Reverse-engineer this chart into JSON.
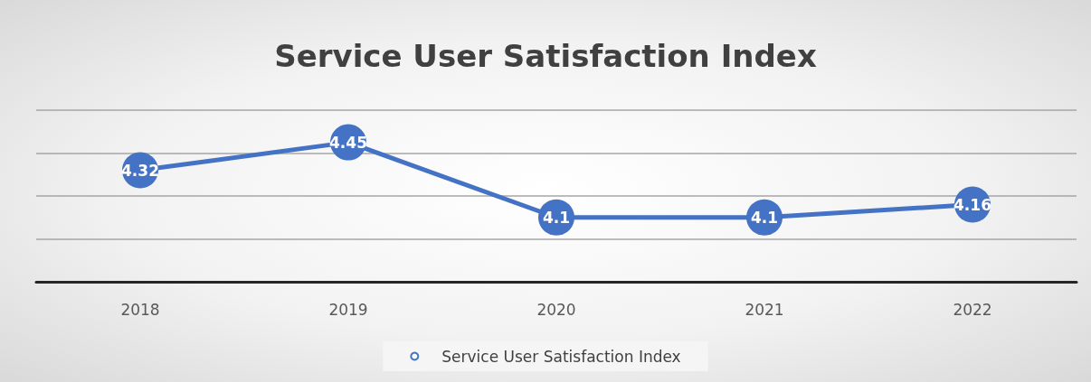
{
  "chart_data": {
    "type": "line",
    "title": "Service User Satisfaction Index",
    "categories": [
      "2018",
      "2019",
      "2020",
      "2021",
      "2022"
    ],
    "series": [
      {
        "name": "Service User Satisfaction Index",
        "color": "#4472c4",
        "values": [
          4.32,
          4.45,
          4.1,
          4.1,
          4.16
        ]
      }
    ],
    "ylim": [
      3.8,
      4.6
    ],
    "yticks": [
      3.8,
      4.0,
      4.2,
      4.4,
      4.6
    ],
    "tick_labels": "x",
    "grid": "y",
    "legend": "bottom",
    "marker": "circle",
    "data_labels": true
  }
}
